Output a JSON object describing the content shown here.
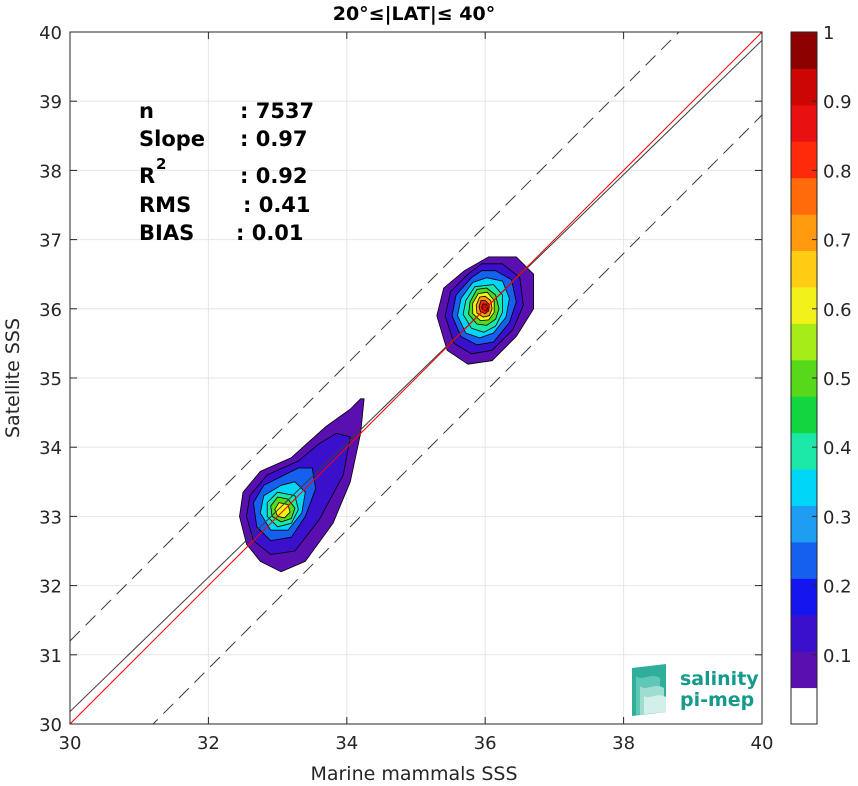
{
  "chart_data": {
    "type": "contour-density-scatter",
    "title": "20°≤|LAT|≤ 40°",
    "xlabel": "Marine mammals SSS",
    "ylabel": "Satellite SSS",
    "xlim": [
      30,
      40
    ],
    "ylim": [
      30,
      40
    ],
    "xticks": [
      30,
      32,
      34,
      36,
      38,
      40
    ],
    "yticks": [
      30,
      31,
      32,
      33,
      34,
      35,
      36,
      37,
      38,
      39,
      40
    ],
    "grid": true,
    "stats": {
      "n_label": "n",
      "n_value": ": 7537",
      "slope_label": "Slope",
      "slope_value": ": 0.97",
      "r2_label": "R",
      "r2_sup": "2",
      "r2_value": ": 0.92",
      "rms_label": "RMS",
      "rms_value": ": 0.41",
      "bias_label": "BIAS",
      "bias_value": ": 0.01"
    },
    "lines": {
      "identity": {
        "slope": 1,
        "intercept": 0,
        "color": "#ff0000"
      },
      "fit": {
        "slope": 0.97,
        "intercept": 1.08,
        "color": "#3a3a3a"
      },
      "upper_dashed": {
        "slope": 1,
        "intercept": 1.2,
        "color": "#3a3a3a"
      },
      "lower_dashed": {
        "slope": 1,
        "intercept": -1.2,
        "color": "#3a3a3a"
      }
    },
    "density_clusters": [
      {
        "name": "cluster-low",
        "center": [
          33.1,
          33.1
        ],
        "levels": [
          {
            "level": 0.05,
            "poly": [
              [
                33.2,
                33.85
              ],
              [
                32.75,
                33.65
              ],
              [
                32.5,
                33.35
              ],
              [
                32.45,
                33.0
              ],
              [
                32.55,
                32.6
              ],
              [
                32.75,
                32.35
              ],
              [
                33.05,
                32.2
              ],
              [
                33.4,
                32.35
              ],
              [
                33.8,
                32.9
              ],
              [
                34.05,
                33.5
              ],
              [
                34.2,
                34.2
              ],
              [
                34.25,
                34.7
              ],
              [
                34.2,
                34.7
              ],
              [
                34.05,
                34.55
              ],
              [
                33.7,
                34.3
              ]
            ]
          },
          {
            "level": 0.15,
            "poly": [
              [
                33.3,
                33.8
              ],
              [
                32.85,
                33.6
              ],
              [
                32.6,
                33.3
              ],
              [
                32.55,
                33.0
              ],
              [
                32.65,
                32.65
              ],
              [
                32.9,
                32.45
              ],
              [
                33.25,
                32.5
              ],
              [
                33.6,
                32.95
              ],
              [
                33.95,
                33.6
              ],
              [
                34.05,
                34.15
              ],
              [
                33.85,
                34.2
              ],
              [
                33.6,
                34.05
              ]
            ]
          },
          {
            "level": 0.25,
            "poly": [
              [
                33.1,
                33.6
              ],
              [
                32.8,
                33.45
              ],
              [
                32.65,
                33.2
              ],
              [
                32.7,
                32.85
              ],
              [
                32.9,
                32.65
              ],
              [
                33.2,
                32.7
              ],
              [
                33.4,
                33.0
              ],
              [
                33.55,
                33.4
              ],
              [
                33.5,
                33.7
              ],
              [
                33.3,
                33.7
              ]
            ]
          },
          {
            "level": 0.32,
            "poly": [
              [
                33.05,
                33.45
              ],
              [
                32.8,
                33.3
              ],
              [
                32.75,
                33.05
              ],
              [
                32.9,
                32.8
              ],
              [
                33.15,
                32.8
              ],
              [
                33.35,
                33.05
              ],
              [
                33.4,
                33.35
              ],
              [
                33.25,
                33.5
              ]
            ]
          },
          {
            "level": 0.42,
            "poly": [
              [
                33.0,
                33.35
              ],
              [
                32.85,
                33.2
              ],
              [
                32.85,
                33.0
              ],
              [
                33.0,
                32.85
              ],
              [
                33.2,
                32.9
              ],
              [
                33.3,
                33.1
              ],
              [
                33.25,
                33.3
              ]
            ]
          },
          {
            "level": 0.52,
            "poly": [
              [
                33.0,
                33.28
              ],
              [
                32.9,
                33.15
              ],
              [
                32.92,
                33.0
              ],
              [
                33.05,
                32.92
              ],
              [
                33.2,
                32.97
              ],
              [
                33.25,
                33.12
              ],
              [
                33.15,
                33.25
              ]
            ]
          },
          {
            "level": 0.62,
            "poly": [
              [
                33.02,
                33.2
              ],
              [
                32.96,
                33.1
              ],
              [
                33.0,
                33.0
              ],
              [
                33.1,
                32.98
              ],
              [
                33.18,
                33.06
              ],
              [
                33.15,
                33.17
              ]
            ]
          }
        ]
      },
      {
        "name": "cluster-high",
        "center": [
          36.0,
          36.0
        ],
        "levels": [
          {
            "level": 0.05,
            "poly": [
              [
                35.7,
                36.55
              ],
              [
                35.4,
                36.3
              ],
              [
                35.3,
                35.9
              ],
              [
                35.45,
                35.4
              ],
              [
                35.75,
                35.2
              ],
              [
                36.1,
                35.25
              ],
              [
                36.45,
                35.6
              ],
              [
                36.7,
                36.0
              ],
              [
                36.7,
                36.5
              ],
              [
                36.45,
                36.75
              ],
              [
                36.05,
                36.75
              ]
            ]
          },
          {
            "level": 0.15,
            "poly": [
              [
                35.75,
                36.5
              ],
              [
                35.5,
                36.25
              ],
              [
                35.42,
                35.9
              ],
              [
                35.55,
                35.5
              ],
              [
                35.8,
                35.35
              ],
              [
                36.1,
                35.4
              ],
              [
                36.4,
                35.7
              ],
              [
                36.55,
                36.05
              ],
              [
                36.5,
                36.45
              ],
              [
                36.25,
                36.65
              ],
              [
                35.95,
                36.65
              ]
            ]
          },
          {
            "level": 0.25,
            "poly": [
              [
                35.8,
                36.45
              ],
              [
                35.58,
                36.2
              ],
              [
                35.52,
                35.9
              ],
              [
                35.65,
                35.6
              ],
              [
                35.88,
                35.48
              ],
              [
                36.12,
                35.52
              ],
              [
                36.35,
                35.8
              ],
              [
                36.45,
                36.1
              ],
              [
                36.38,
                36.42
              ],
              [
                36.15,
                36.55
              ],
              [
                35.95,
                36.55
              ]
            ]
          },
          {
            "level": 0.32,
            "poly": [
              [
                35.82,
                36.38
              ],
              [
                35.65,
                36.15
              ],
              [
                35.6,
                35.9
              ],
              [
                35.72,
                35.65
              ],
              [
                35.92,
                35.58
              ],
              [
                36.12,
                35.65
              ],
              [
                36.3,
                35.88
              ],
              [
                36.35,
                36.15
              ],
              [
                36.25,
                36.4
              ],
              [
                36.02,
                36.45
              ]
            ]
          },
          {
            "level": 0.42,
            "poly": [
              [
                35.85,
                36.32
              ],
              [
                35.72,
                36.12
              ],
              [
                35.68,
                35.92
              ],
              [
                35.8,
                35.72
              ],
              [
                35.98,
                35.66
              ],
              [
                36.15,
                35.75
              ],
              [
                36.25,
                35.95
              ],
              [
                36.25,
                36.2
              ],
              [
                36.12,
                36.35
              ]
            ]
          },
          {
            "level": 0.52,
            "poly": [
              [
                35.88,
                36.28
              ],
              [
                35.78,
                36.1
              ],
              [
                35.76,
                35.92
              ],
              [
                35.88,
                35.78
              ],
              [
                36.02,
                35.76
              ],
              [
                36.15,
                35.85
              ],
              [
                36.2,
                36.0
              ],
              [
                36.15,
                36.2
              ],
              [
                36.02,
                36.3
              ]
            ]
          },
          {
            "level": 0.62,
            "poly": [
              [
                35.9,
                36.22
              ],
              [
                35.82,
                36.08
              ],
              [
                35.82,
                35.93
              ],
              [
                35.93,
                35.83
              ],
              [
                36.05,
                35.84
              ],
              [
                36.13,
                35.95
              ],
              [
                36.13,
                36.12
              ],
              [
                36.03,
                36.24
              ]
            ]
          },
          {
            "level": 0.72,
            "poly": [
              [
                35.92,
                36.17
              ],
              [
                35.87,
                36.05
              ],
              [
                35.88,
                35.94
              ],
              [
                35.97,
                35.88
              ],
              [
                36.06,
                35.9
              ],
              [
                36.1,
                36.0
              ],
              [
                36.08,
                36.12
              ],
              [
                36.0,
                36.18
              ]
            ]
          },
          {
            "level": 0.82,
            "poly": [
              [
                35.94,
                36.12
              ],
              [
                35.91,
                36.03
              ],
              [
                35.93,
                35.96
              ],
              [
                36.0,
                35.93
              ],
              [
                36.05,
                35.97
              ],
              [
                36.06,
                36.06
              ],
              [
                36.0,
                36.12
              ]
            ]
          },
          {
            "level": 0.92,
            "poly": [
              [
                35.96,
                36.07
              ],
              [
                35.95,
                36.01
              ],
              [
                35.98,
                35.97
              ],
              [
                36.02,
                35.97
              ],
              [
                36.04,
                36.02
              ],
              [
                36.02,
                36.07
              ]
            ]
          }
        ]
      }
    ],
    "colorbar": {
      "ticks": [
        "0.1",
        "0.2",
        "0.3",
        "0.4",
        "0.5",
        "0.6",
        "0.7",
        "0.8",
        "0.9",
        "1"
      ],
      "colors": [
        "#ffffff",
        "#5a0fb0",
        "#3a10cc",
        "#1515f0",
        "#1660f0",
        "#1e9df2",
        "#00d7f8",
        "#1ce8a8",
        "#12d640",
        "#58d81a",
        "#a6ec18",
        "#f2f21a",
        "#ffce14",
        "#ff9a0e",
        "#ff6a0a",
        "#ff2a0a",
        "#e81010",
        "#cc0505",
        "#8c0000"
      ]
    },
    "logo": {
      "line1": "salinity",
      "line2": "pi-mep"
    }
  }
}
